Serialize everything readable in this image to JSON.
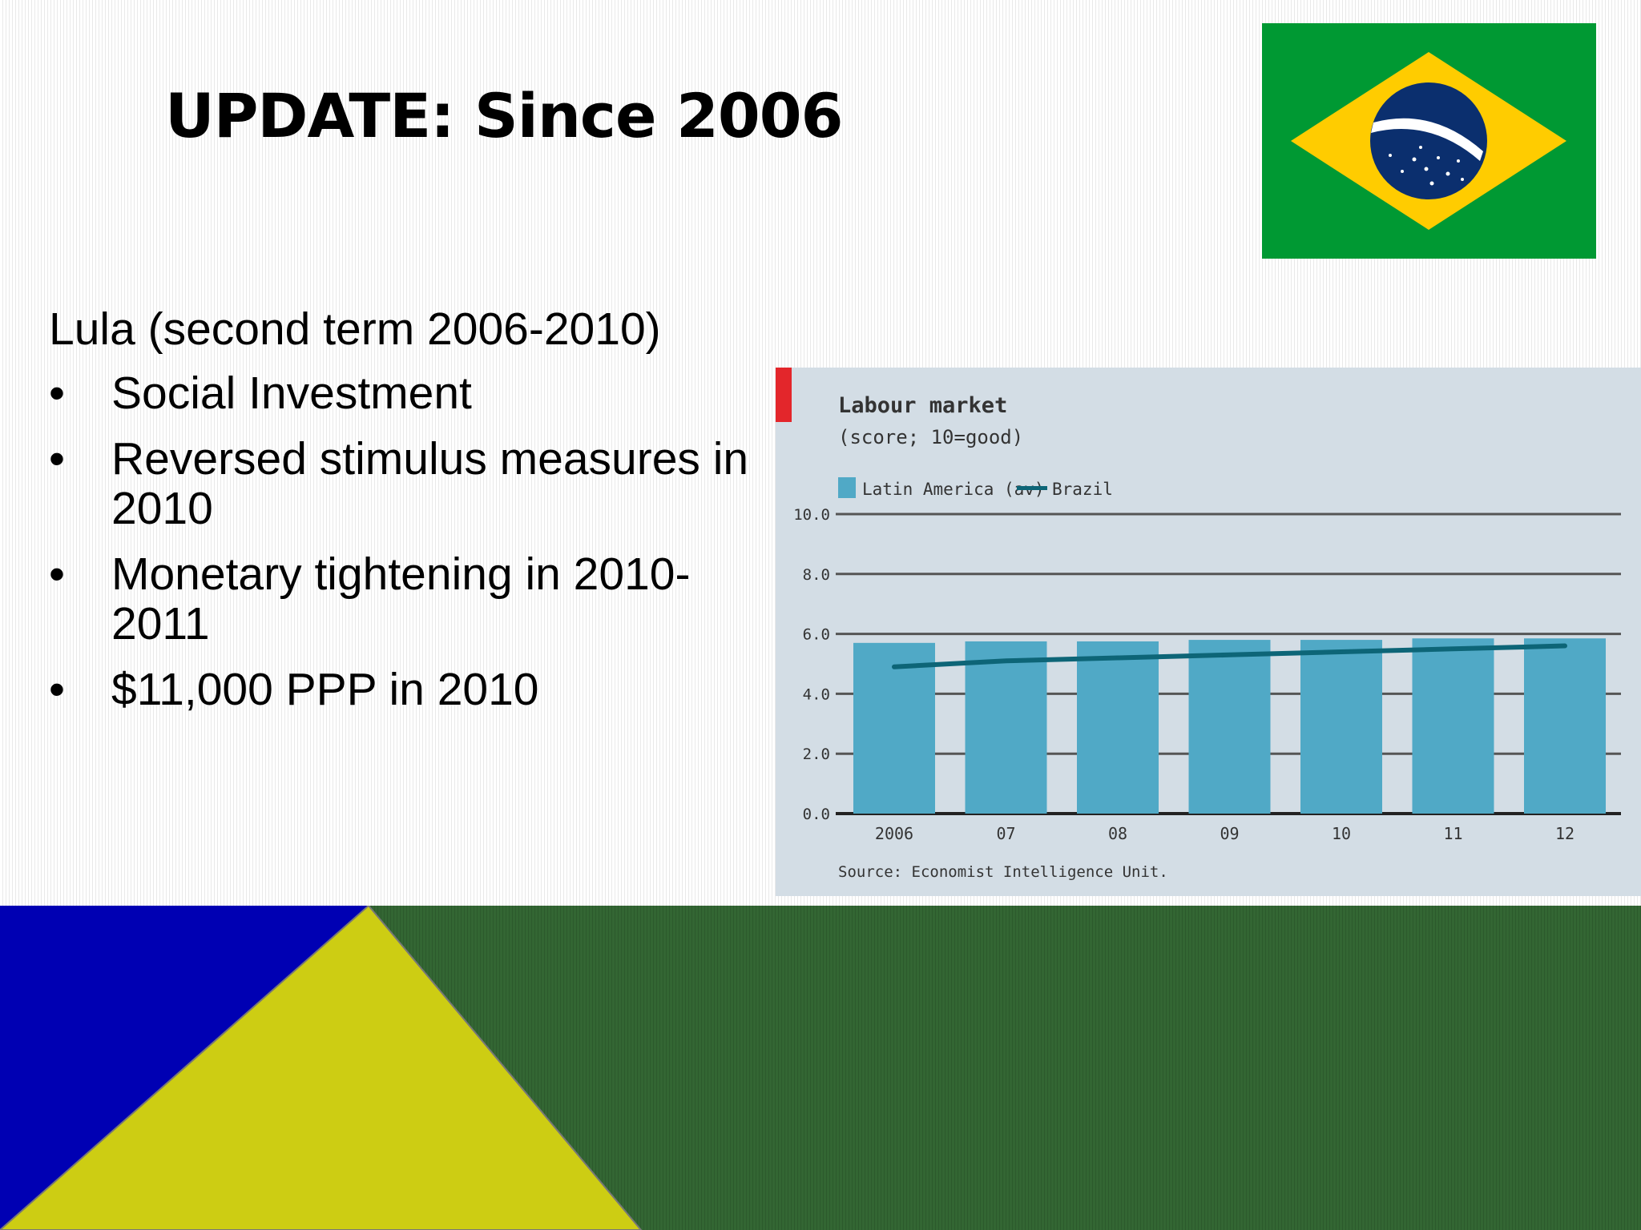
{
  "slide": {
    "title": "UPDATE: Since 2006",
    "subtitle": "Lula (second term 2006-2010)",
    "bullets": [
      "Social Investment",
      "Reversed stimulus measures in 2010",
      "Monetary tightening in 2010-2011",
      "$11,000 PPP in 2010"
    ],
    "bullet_symbol": "•"
  },
  "flag": {
    "green": "#009933",
    "yellow": "#ffcc00",
    "blue": "#0b2f6e",
    "band": "#ffffff"
  },
  "colors": {
    "bar": "#50a9c6",
    "line": "#0d6577",
    "accent": "#e3262b",
    "bottom_blue": "#0000b3",
    "bottom_yellow": "#cdcd13",
    "bottom_green": "#336633"
  },
  "chart_data": {
    "type": "bar",
    "title": "Labour market",
    "subtitle": "(score; 10=good)",
    "categories": [
      "2006",
      "07",
      "08",
      "09",
      "10",
      "11",
      "12"
    ],
    "series": [
      {
        "name": "Latin America (av)",
        "kind": "bar",
        "values": [
          5.7,
          5.75,
          5.75,
          5.8,
          5.8,
          5.85,
          5.85
        ]
      },
      {
        "name": "Brazil",
        "kind": "line",
        "values": [
          4.9,
          5.1,
          5.2,
          5.3,
          5.4,
          5.5,
          5.6
        ]
      }
    ],
    "ylim": [
      0,
      10
    ],
    "yticks": [
      "0.0",
      "2.0",
      "4.0",
      "6.0",
      "8.0",
      "10.0"
    ],
    "grid": true,
    "legend_position": "top-left",
    "source": "Source: Economist Intelligence Unit."
  }
}
